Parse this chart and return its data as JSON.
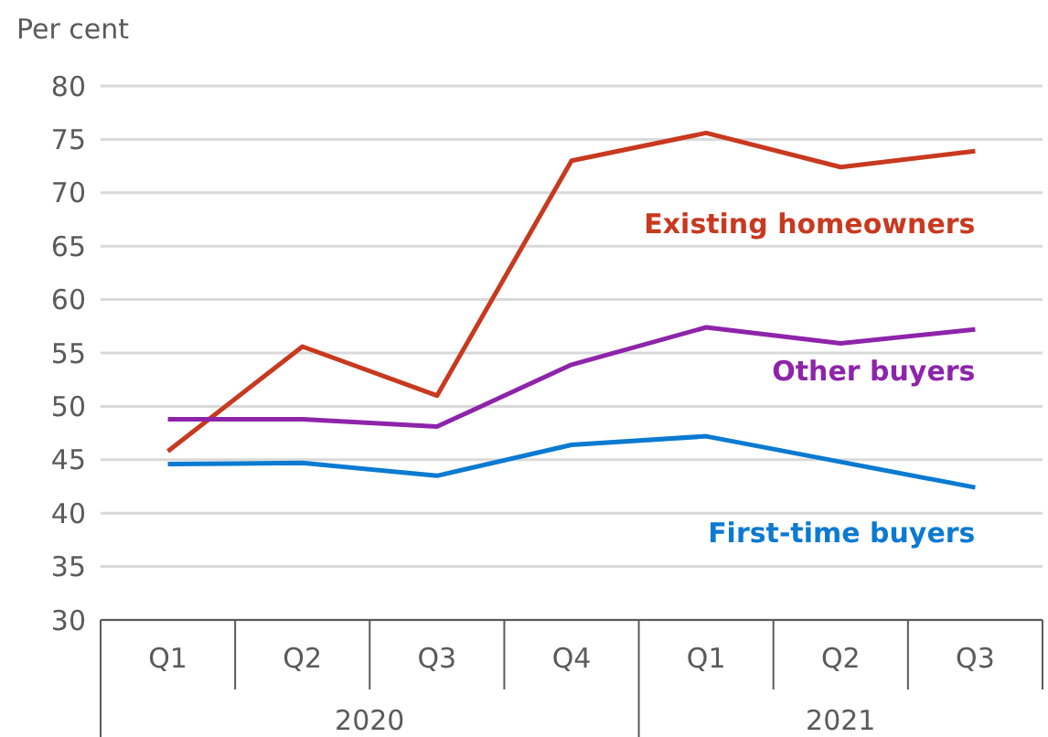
{
  "chart_data": {
    "type": "line",
    "ylabel": "Per cent",
    "categories": [
      "Q1",
      "Q2",
      "Q3",
      "Q4",
      "Q1",
      "Q2",
      "Q3"
    ],
    "annotations": [
      "2020",
      "2021"
    ],
    "series": [
      {
        "name": "Existing homeowners",
        "color": "#c8391f",
        "values": [
          45.8,
          55.6,
          51.0,
          73.0,
          75.6,
          72.4,
          73.9
        ]
      },
      {
        "name": "Other buyers",
        "color": "#8e24aa",
        "values": [
          48.8,
          48.8,
          48.1,
          53.9,
          57.4,
          55.9,
          57.2
        ]
      },
      {
        "name": "First-time buyers",
        "color": "#0b7ad1",
        "values": [
          44.6,
          44.7,
          43.5,
          46.4,
          47.2,
          44.8,
          42.4
        ]
      }
    ],
    "ylim": [
      30,
      80
    ],
    "yticks": [
      30,
      35,
      40,
      45,
      50,
      55,
      60,
      65,
      70,
      75,
      80
    ],
    "grid": "y",
    "legend": false,
    "marker": "none",
    "line_style": "solid"
  }
}
